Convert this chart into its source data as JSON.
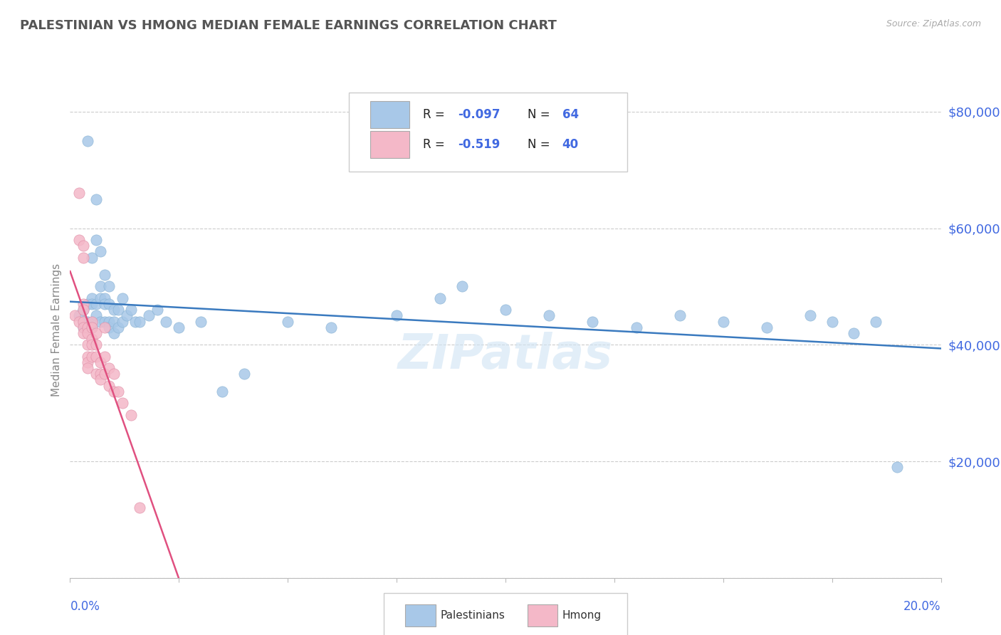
{
  "title": "PALESTINIAN VS HMONG MEDIAN FEMALE EARNINGS CORRELATION CHART",
  "source": "Source: ZipAtlas.com",
  "ylabel": "Median Female Earnings",
  "xlim": [
    0.0,
    0.2
  ],
  "ylim": [
    0,
    85000
  ],
  "yticks": [
    0,
    20000,
    40000,
    60000,
    80000
  ],
  "ytick_labels": [
    "",
    "$20,000",
    "$40,000",
    "$60,000",
    "$80,000"
  ],
  "pal_color": "#a8c8e8",
  "hmong_color": "#f4b8c8",
  "pal_line_color": "#3a7abf",
  "hmong_line_color": "#e05080",
  "watermark": "ZIPatlas",
  "background_color": "#ffffff",
  "grid_color": "#cccccc",
  "title_color": "#555555",
  "axis_label_color": "#4169e1",
  "legend_text_color": "#4169e1",
  "palestinians_x": [
    0.002,
    0.003,
    0.003,
    0.003,
    0.004,
    0.004,
    0.004,
    0.004,
    0.005,
    0.005,
    0.005,
    0.005,
    0.005,
    0.006,
    0.006,
    0.006,
    0.006,
    0.007,
    0.007,
    0.007,
    0.007,
    0.008,
    0.008,
    0.008,
    0.008,
    0.009,
    0.009,
    0.009,
    0.009,
    0.01,
    0.01,
    0.01,
    0.011,
    0.011,
    0.012,
    0.012,
    0.013,
    0.014,
    0.015,
    0.016,
    0.018,
    0.02,
    0.022,
    0.025,
    0.03,
    0.035,
    0.04,
    0.05,
    0.06,
    0.075,
    0.085,
    0.09,
    0.1,
    0.11,
    0.12,
    0.13,
    0.14,
    0.15,
    0.16,
    0.17,
    0.175,
    0.18,
    0.185,
    0.19
  ],
  "palestinians_y": [
    45000,
    46000,
    44000,
    43000,
    75000,
    47000,
    44000,
    43000,
    55000,
    48000,
    44000,
    47000,
    43000,
    65000,
    58000,
    47000,
    45000,
    56000,
    50000,
    48000,
    44000,
    52000,
    48000,
    47000,
    44000,
    50000,
    47000,
    44000,
    43000,
    46000,
    44000,
    42000,
    46000,
    43000,
    48000,
    44000,
    45000,
    46000,
    44000,
    44000,
    45000,
    46000,
    44000,
    43000,
    44000,
    32000,
    35000,
    44000,
    43000,
    45000,
    48000,
    50000,
    46000,
    45000,
    44000,
    43000,
    45000,
    44000,
    43000,
    45000,
    44000,
    42000,
    44000,
    19000
  ],
  "hmong_x": [
    0.001,
    0.002,
    0.002,
    0.002,
    0.003,
    0.003,
    0.003,
    0.003,
    0.003,
    0.003,
    0.003,
    0.004,
    0.004,
    0.004,
    0.004,
    0.004,
    0.004,
    0.005,
    0.005,
    0.005,
    0.005,
    0.005,
    0.006,
    0.006,
    0.006,
    0.006,
    0.007,
    0.007,
    0.007,
    0.008,
    0.008,
    0.008,
    0.009,
    0.009,
    0.01,
    0.01,
    0.011,
    0.012,
    0.014,
    0.016
  ],
  "hmong_y": [
    45000,
    66000,
    58000,
    44000,
    57000,
    55000,
    47000,
    46000,
    44000,
    43000,
    42000,
    43000,
    42000,
    40000,
    38000,
    37000,
    36000,
    44000,
    43000,
    41000,
    40000,
    38000,
    42000,
    40000,
    38000,
    35000,
    37000,
    35000,
    34000,
    43000,
    38000,
    35000,
    36000,
    33000,
    35000,
    32000,
    32000,
    30000,
    28000,
    12000
  ]
}
